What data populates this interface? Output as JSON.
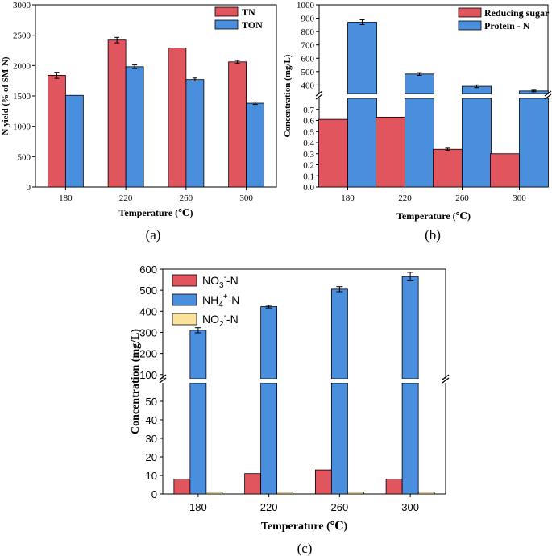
{
  "colors": {
    "red": "#e0555e",
    "blue": "#4a8fde",
    "yellow": "#fbe29a",
    "axis": "#000000"
  },
  "chart_data": [
    {
      "id": "a",
      "panel_label": "(a)",
      "type": "bar",
      "title": "",
      "xlabel": "Temperature (℃)",
      "ylabel": "N yield (% of SM-N)",
      "ylim": [
        0,
        3000
      ],
      "yticks": [
        "0",
        "500",
        "1000",
        "1500",
        "2000",
        "2500",
        "3000"
      ],
      "categories": [
        "180",
        "220",
        "260",
        "300"
      ],
      "legend_position": "top-right",
      "series": [
        {
          "name": "TN",
          "color_key": "red",
          "values": [
            1840,
            2420,
            2290,
            2060
          ],
          "errors": [
            50,
            45,
            0,
            25
          ]
        },
        {
          "name": "TON",
          "color_key": "blue",
          "values": [
            1510,
            1980,
            1770,
            1380
          ],
          "errors": [
            0,
            30,
            25,
            20
          ]
        }
      ]
    },
    {
      "id": "b",
      "panel_label": "(b)",
      "type": "bar",
      "title": "",
      "xlabel": "Temperature (℃)",
      "ylabel": "Concentration (mg/L)",
      "broken_axis": {
        "lower_range": [
          0,
          0.8
        ],
        "upper_range": [
          330,
          1000
        ]
      },
      "lower_ticks": [
        "0.0",
        "0.1",
        "0.2",
        "0.3",
        "0.4",
        "0.5",
        "0.6",
        "0.7"
      ],
      "upper_ticks": [
        "400",
        "500",
        "600",
        "700",
        "800",
        "900",
        "1000"
      ],
      "categories": [
        "180",
        "220",
        "260",
        "300"
      ],
      "legend_position": "top-right",
      "series": [
        {
          "name": "Reducing sugar",
          "color_key": "red",
          "values": [
            0.61,
            0.63,
            0.34,
            0.3
          ],
          "errors": [
            0,
            0,
            0.01,
            0
          ]
        },
        {
          "name": "Protein - N",
          "color_key": "blue",
          "values": [
            870,
            482,
            390,
            355
          ],
          "errors": [
            18,
            10,
            10,
            6
          ]
        }
      ]
    },
    {
      "id": "c",
      "panel_label": "(c)",
      "type": "bar",
      "title": "",
      "xlabel": "Temperature (℃)",
      "ylabel": "Concentration (mg/L)",
      "broken_axis": {
        "lower_range": [
          0,
          60
        ],
        "upper_range": [
          80,
          600
        ]
      },
      "lower_ticks": [
        "0",
        "10",
        "20",
        "30",
        "40",
        "50"
      ],
      "upper_ticks": [
        "100",
        "200",
        "300",
        "400",
        "500",
        "600"
      ],
      "categories": [
        "180",
        "220",
        "260",
        "300"
      ],
      "legend_position": "top-left",
      "series": [
        {
          "name": "NO3-N",
          "label_main": "NO",
          "label_sub": "3",
          "label_sup": "-",
          "label_tail": "-N",
          "color_key": "red",
          "values": [
            8,
            11,
            13,
            8
          ],
          "errors": [
            0,
            0,
            0,
            0
          ]
        },
        {
          "name": "NH4+-N",
          "label_main": "NH",
          "label_sub": "4",
          "label_sup": "+",
          "label_tail": "-N",
          "color_key": "blue",
          "values": [
            310,
            422,
            505,
            565
          ],
          "errors": [
            12,
            6,
            12,
            20
          ]
        },
        {
          "name": "NO2-N",
          "label_main": "NO",
          "label_sub": "2",
          "label_sup": "-",
          "label_tail": "-N",
          "color_key": "yellow",
          "values": [
            1,
            1,
            1,
            1
          ],
          "errors": [
            0,
            0,
            0,
            0
          ]
        }
      ]
    }
  ]
}
